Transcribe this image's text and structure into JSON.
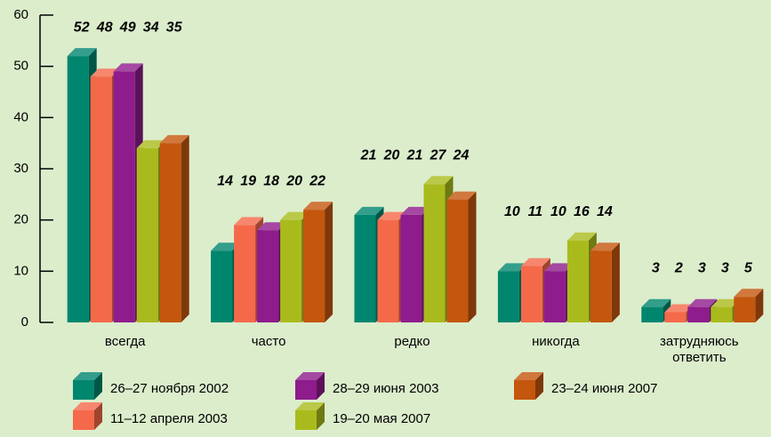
{
  "chart_data": {
    "type": "bar3d",
    "categories": [
      "всегда",
      "часто",
      "редко",
      "никогда",
      "затрудняюсь ответить"
    ],
    "series": [
      {
        "name": "26–27 ноября 2002",
        "color": "#00866e",
        "values": [
          52,
          14,
          21,
          10,
          3
        ]
      },
      {
        "name": "11–12 апреля 2003",
        "color": "#f4694a",
        "values": [
          48,
          19,
          20,
          11,
          2
        ]
      },
      {
        "name": "28–29 июня 2003",
        "color": "#8e1c8c",
        "values": [
          49,
          18,
          21,
          10,
          3
        ]
      },
      {
        "name": "19–20 мая 2007",
        "color": "#a9bb1c",
        "values": [
          34,
          20,
          27,
          16,
          3
        ]
      },
      {
        "name": "23–24 июня 2007",
        "color": "#c4560e",
        "values": [
          35,
          22,
          24,
          14,
          5
        ]
      }
    ],
    "ylim": [
      0,
      60
    ],
    "yticks": [
      0,
      10,
      20,
      30,
      40,
      50,
      60
    ]
  }
}
